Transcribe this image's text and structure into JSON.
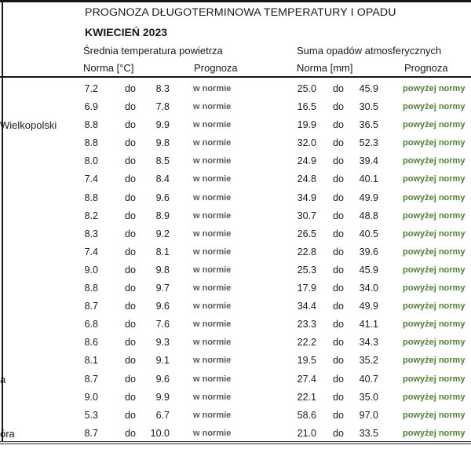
{
  "page": {
    "title": "PROGNOZA DŁUGOTERMINOWA TEMPERATURY I OPADU",
    "subtitle": "KWIECIEŃ 2023"
  },
  "colors": {
    "text": "#1a1a1a",
    "forecast_normal_gray": "#595959",
    "forecast_above_green": "#538135"
  },
  "table": {
    "temperature_group_label": "Średnia temperatura powietrza",
    "temperature_norm_label": "Norma [°C]",
    "temperature_forecast_label": "Prognoza",
    "precipitation_group_label": "Suma opadów atmosferycznych",
    "precipitation_norm_label": "Norma [mm]",
    "precipitation_forecast_label": "Prognoza",
    "separator_label": "do",
    "rows": [
      {
        "station": "",
        "t_min": "7.2",
        "t_max": "8.3",
        "t_prog": "w normie",
        "p_min": "25.0",
        "p_max": "45.9",
        "p_prog": "powyżej normy"
      },
      {
        "station": "",
        "t_min": "6.9",
        "t_max": "7.8",
        "t_prog": "w normie",
        "p_min": "16.5",
        "p_max": "30.5",
        "p_prog": "powyżej normy"
      },
      {
        "station": "Wielkopolski",
        "t_min": "8.8",
        "t_max": "9.9",
        "t_prog": "w normie",
        "p_min": "19.9",
        "p_max": "36.5",
        "p_prog": "powyżej normy"
      },
      {
        "station": "",
        "t_min": "8.8",
        "t_max": "9.8",
        "t_prog": "w normie",
        "p_min": "32.0",
        "p_max": "52.3",
        "p_prog": "powyżej normy"
      },
      {
        "station": "",
        "t_min": "8.0",
        "t_max": "8.5",
        "t_prog": "w normie",
        "p_min": "24.9",
        "p_max": "39.4",
        "p_prog": "powyżej normy"
      },
      {
        "station": "",
        "t_min": "7.4",
        "t_max": "8.4",
        "t_prog": "w normie",
        "p_min": "24.8",
        "p_max": "40.1",
        "p_prog": "powyżej normy"
      },
      {
        "station": "",
        "t_min": "8.8",
        "t_max": "9.6",
        "t_prog": "w normie",
        "p_min": "34.9",
        "p_max": "49.9",
        "p_prog": "powyżej normy"
      },
      {
        "station": "",
        "t_min": "8.2",
        "t_max": "8.9",
        "t_prog": "w normie",
        "p_min": "30.7",
        "p_max": "48.8",
        "p_prog": "powyżej normy"
      },
      {
        "station": "",
        "t_min": "8.3",
        "t_max": "9.2",
        "t_prog": "w normie",
        "p_min": "26.5",
        "p_max": "40.5",
        "p_prog": "powyżej normy"
      },
      {
        "station": "",
        "t_min": "7.4",
        "t_max": "8.1",
        "t_prog": "w normie",
        "p_min": "22.8",
        "p_max": "39.6",
        "p_prog": "powyżej normy"
      },
      {
        "station": "",
        "t_min": "9.0",
        "t_max": "9.8",
        "t_prog": "w normie",
        "p_min": "25.3",
        "p_max": "45.9",
        "p_prog": "powyżej normy"
      },
      {
        "station": "",
        "t_min": "8.8",
        "t_max": "9.7",
        "t_prog": "w normie",
        "p_min": "17.9",
        "p_max": "34.0",
        "p_prog": "powyżej normy"
      },
      {
        "station": "",
        "t_min": "8.7",
        "t_max": "9.6",
        "t_prog": "w normie",
        "p_min": "34.4",
        "p_max": "49.9",
        "p_prog": "powyżej normy"
      },
      {
        "station": "",
        "t_min": "6.8",
        "t_max": "7.6",
        "t_prog": "w normie",
        "p_min": "23.3",
        "p_max": "41.1",
        "p_prog": "powyżej normy"
      },
      {
        "station": "",
        "t_min": "8.6",
        "t_max": "9.3",
        "t_prog": "w normie",
        "p_min": "22.2",
        "p_max": "34.3",
        "p_prog": "powyżej normy"
      },
      {
        "station": "",
        "t_min": "8.1",
        "t_max": "9.1",
        "t_prog": "w normie",
        "p_min": "19.5",
        "p_max": "35.2",
        "p_prog": "powyżej normy"
      },
      {
        "station": "a",
        "t_min": "8.7",
        "t_max": "9.6",
        "t_prog": "w normie",
        "p_min": "27.4",
        "p_max": "40.7",
        "p_prog": "powyżej normy"
      },
      {
        "station": "",
        "t_min": "9.0",
        "t_max": "9.9",
        "t_prog": "w normie",
        "p_min": "22.1",
        "p_max": "35.0",
        "p_prog": "powyżej normy"
      },
      {
        "station": "",
        "t_min": "5.3",
        "t_max": "6.7",
        "t_prog": "w normie",
        "p_min": "58.6",
        "p_max": "97.0",
        "p_prog": "powyżej normy"
      },
      {
        "station": "óra",
        "t_min": "8.7",
        "t_max": "10.0",
        "t_prog": "w normie",
        "p_min": "21.0",
        "p_max": "33.5",
        "p_prog": "powyżej normy"
      }
    ]
  }
}
